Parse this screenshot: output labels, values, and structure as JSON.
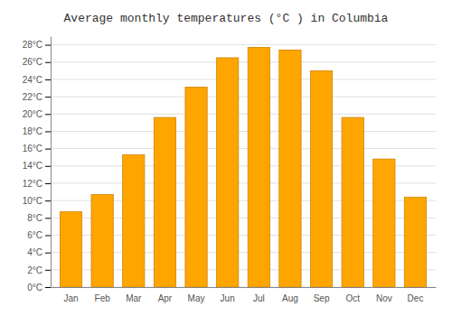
{
  "chart_data": {
    "type": "bar",
    "title": "Average monthly temperatures (°C ) in Columbia",
    "categories": [
      "Jan",
      "Feb",
      "Mar",
      "Apr",
      "May",
      "Jun",
      "Jul",
      "Aug",
      "Sep",
      "Oct",
      "Nov",
      "Dec"
    ],
    "values": [
      8.7,
      10.7,
      15.3,
      19.6,
      23.1,
      26.5,
      27.7,
      27.4,
      25.0,
      19.6,
      14.8,
      10.4
    ],
    "color": "#FFA500",
    "ylim": [
      0,
      29
    ],
    "yticks": [
      {
        "value": 0,
        "label": "0°C"
      },
      {
        "value": 2,
        "label": "2°C"
      },
      {
        "value": 4,
        "label": "4°C"
      },
      {
        "value": 6,
        "label": "6°C"
      },
      {
        "value": 8,
        "label": "8°C"
      },
      {
        "value": 10,
        "label": "10°C"
      },
      {
        "value": 12,
        "label": "12°C"
      },
      {
        "value": 14,
        "label": "14°C"
      },
      {
        "value": 16,
        "label": "16°C"
      },
      {
        "value": 18,
        "label": "18°C"
      },
      {
        "value": 20,
        "label": "20°C"
      },
      {
        "value": 22,
        "label": "22°C"
      },
      {
        "value": 24,
        "label": "24°C"
      },
      {
        "value": 26,
        "label": "26°C"
      },
      {
        "value": 28,
        "label": "28°C"
      }
    ],
    "grid": true
  }
}
